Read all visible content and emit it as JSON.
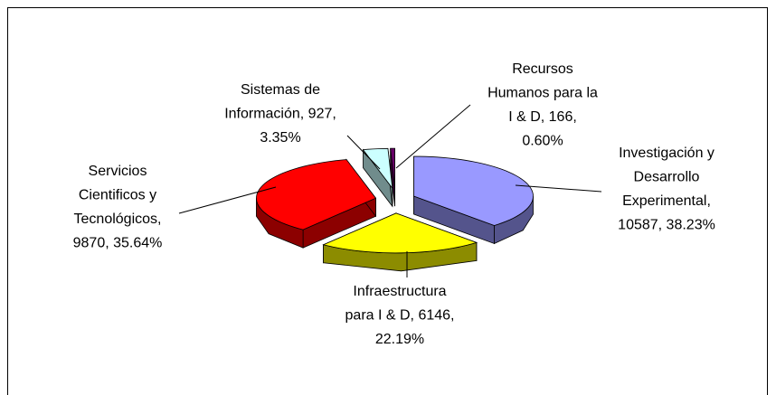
{
  "chart_data": {
    "type": "pie3d",
    "values": [
      10587,
      6146,
      9870,
      927,
      166
    ],
    "value_labels": [
      [
        "Investigación y",
        "Desarrollo",
        "Experimental,",
        "10587, 38.23%"
      ],
      [
        "Infraestructura",
        "para I & D, 6146,",
        "22.19%"
      ],
      [
        "Servicios",
        "Cientificos y",
        "Tecnológicos,",
        "9870, 35.64%"
      ],
      [
        "Sistemas de",
        "Información, 927,",
        "3.35%"
      ],
      [
        "Recursos",
        "Humanos para la",
        "I & D, 166,",
        "0.60%"
      ]
    ],
    "colors": [
      "#9999ff",
      "#ffff00",
      "#ff0000",
      "#ccffff",
      "#660066"
    ]
  }
}
